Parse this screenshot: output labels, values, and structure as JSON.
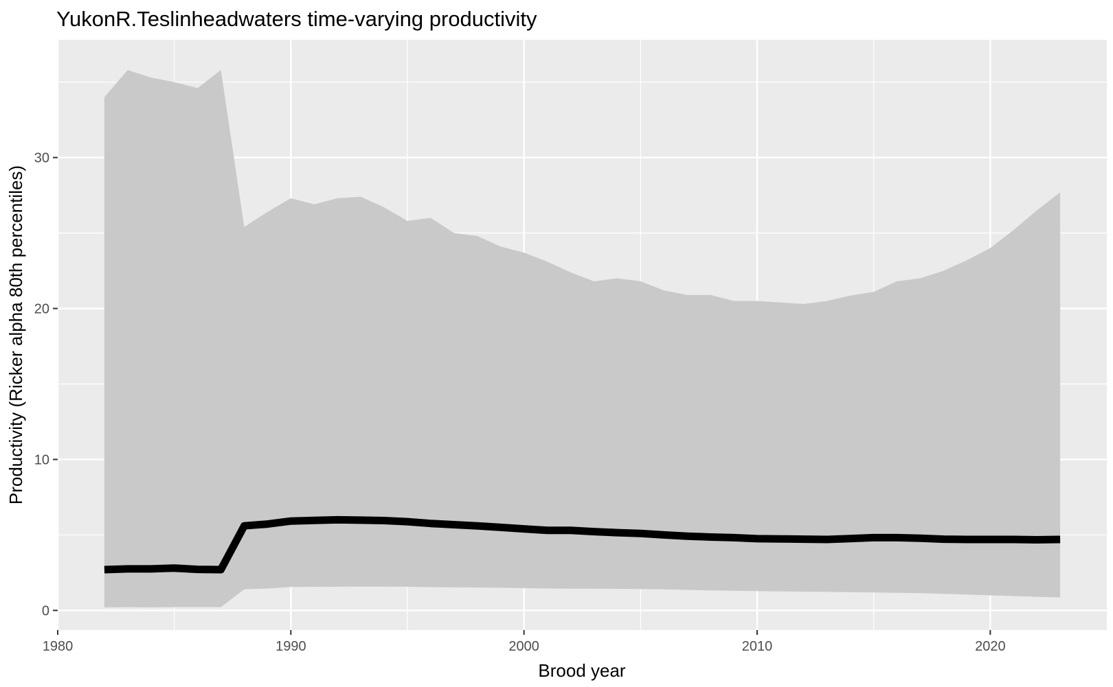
{
  "chart_data": {
    "type": "area",
    "title": "YukonR.Teslinheadwaters time-varying productivity",
    "xlabel": "Brood year",
    "ylabel": "Productivity (Ricker alpha 80th percentiles)",
    "xlim": [
      1980,
      2025
    ],
    "ylim": [
      -1.3,
      37.8
    ],
    "x_ticks": [
      1980,
      1990,
      2000,
      2010,
      2020
    ],
    "y_ticks": [
      0,
      10,
      20,
      30
    ],
    "grid": true,
    "legend": "none",
    "colors": {
      "panel": "#ebebeb",
      "ribbon": "#c9c9c9",
      "line": "#000000"
    },
    "series": [
      {
        "x": [
          1982,
          1983,
          1984,
          1985,
          1986,
          1987,
          1988,
          1989,
          1990,
          1991,
          1992,
          1993,
          1994,
          1995,
          1996,
          1997,
          1998,
          1999,
          2000,
          2001,
          2002,
          2003,
          2004,
          2005,
          2006,
          2007,
          2008,
          2009,
          2010,
          2011,
          2012,
          2013,
          2014,
          2015,
          2016,
          2017,
          2018,
          2019,
          2020,
          2021,
          2022,
          2023
        ],
        "median": [
          2.7,
          2.75,
          2.75,
          2.8,
          2.72,
          2.7,
          5.6,
          5.72,
          5.92,
          5.96,
          6.0,
          5.98,
          5.95,
          5.88,
          5.76,
          5.68,
          5.6,
          5.5,
          5.4,
          5.3,
          5.3,
          5.22,
          5.15,
          5.1,
          5.0,
          4.92,
          4.86,
          4.82,
          4.75,
          4.74,
          4.72,
          4.7,
          4.76,
          4.82,
          4.82,
          4.78,
          4.72,
          4.7,
          4.7,
          4.7,
          4.68,
          4.7
        ],
        "lower": [
          0.2,
          0.22,
          0.2,
          0.22,
          0.22,
          0.22,
          1.4,
          1.45,
          1.55,
          1.56,
          1.57,
          1.58,
          1.58,
          1.57,
          1.54,
          1.53,
          1.52,
          1.5,
          1.48,
          1.45,
          1.44,
          1.44,
          1.43,
          1.42,
          1.4,
          1.36,
          1.33,
          1.3,
          1.28,
          1.26,
          1.24,
          1.23,
          1.21,
          1.19,
          1.17,
          1.14,
          1.1,
          1.05,
          1.0,
          0.95,
          0.9,
          0.86
        ],
        "upper": [
          34.0,
          35.8,
          35.3,
          35.0,
          34.6,
          35.8,
          25.4,
          26.4,
          27.3,
          26.9,
          27.3,
          27.4,
          26.7,
          25.8,
          26.0,
          25.0,
          24.8,
          24.1,
          23.7,
          23.1,
          22.4,
          21.8,
          22.0,
          21.8,
          21.2,
          20.9,
          20.9,
          20.5,
          20.5,
          20.4,
          20.3,
          20.5,
          20.85,
          21.1,
          21.8,
          22.0,
          22.5,
          23.2,
          24.0,
          25.2,
          26.5,
          27.7
        ]
      }
    ]
  }
}
